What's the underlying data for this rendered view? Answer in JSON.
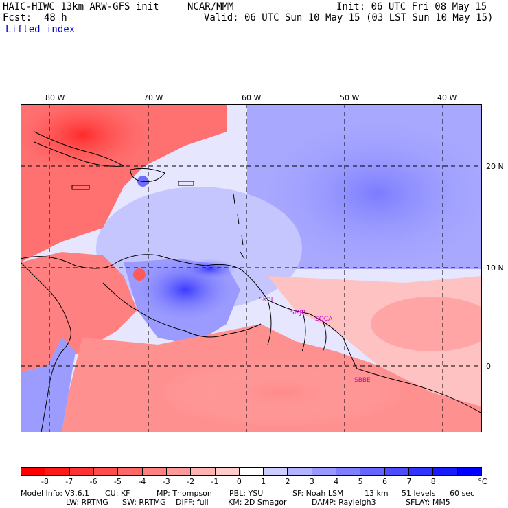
{
  "header": {
    "model_title": "HAIC-HIWC 13km ARW-GFS init",
    "org": "NCAR/MMM",
    "init": "Init: 06 UTC Fri 08 May 15",
    "fcst_label": "Fcst:",
    "fcst_value": "48 h",
    "valid": "Valid: 06 UTC Sun 10 May 15 (03 LST Sun 10 May 15)",
    "field_name": "Lifted index"
  },
  "longitudes": [
    "80 W",
    "70 W",
    "60 W",
    "50 W",
    "40 W"
  ],
  "latitudes": [
    "20 N",
    "10 N",
    "0"
  ],
  "stations": [
    "SKBI",
    "SMJP",
    "SOCA",
    "SBBE"
  ],
  "colorbar": {
    "ticks": [
      "-8",
      "-7",
      "-6",
      "-5",
      "-4",
      "-3",
      "-2",
      "-1",
      "0",
      "1",
      "2",
      "3",
      "4",
      "5",
      "6",
      "7",
      "8"
    ],
    "unit": "°C",
    "colors": [
      "#ff0000",
      "#ff1a1a",
      "#ff3333",
      "#ff4d4d",
      "#ff6666",
      "#ff8080",
      "#ff9999",
      "#ffb3b3",
      "#ffcccc",
      "#ffffff",
      "#ccccff",
      "#b3b3ff",
      "#9999ff",
      "#8080ff",
      "#6666ff",
      "#4d4dff",
      "#3333ff",
      "#1a1aff",
      "#0000ff"
    ]
  },
  "footer": {
    "line1": [
      "Model Info: V3.6.1",
      "CU: KF",
      "MP: Thompson",
      "PBL: YSU",
      "SF: Noah LSM",
      "13 km",
      "51 levels",
      "60 sec"
    ],
    "line2": [
      "LW: RRTMG",
      "SW: RRTMG",
      "DIFF: full",
      "KM: 2D Smagor",
      "DAMP: Rayleigh3",
      "SFLAY: MM5"
    ]
  }
}
